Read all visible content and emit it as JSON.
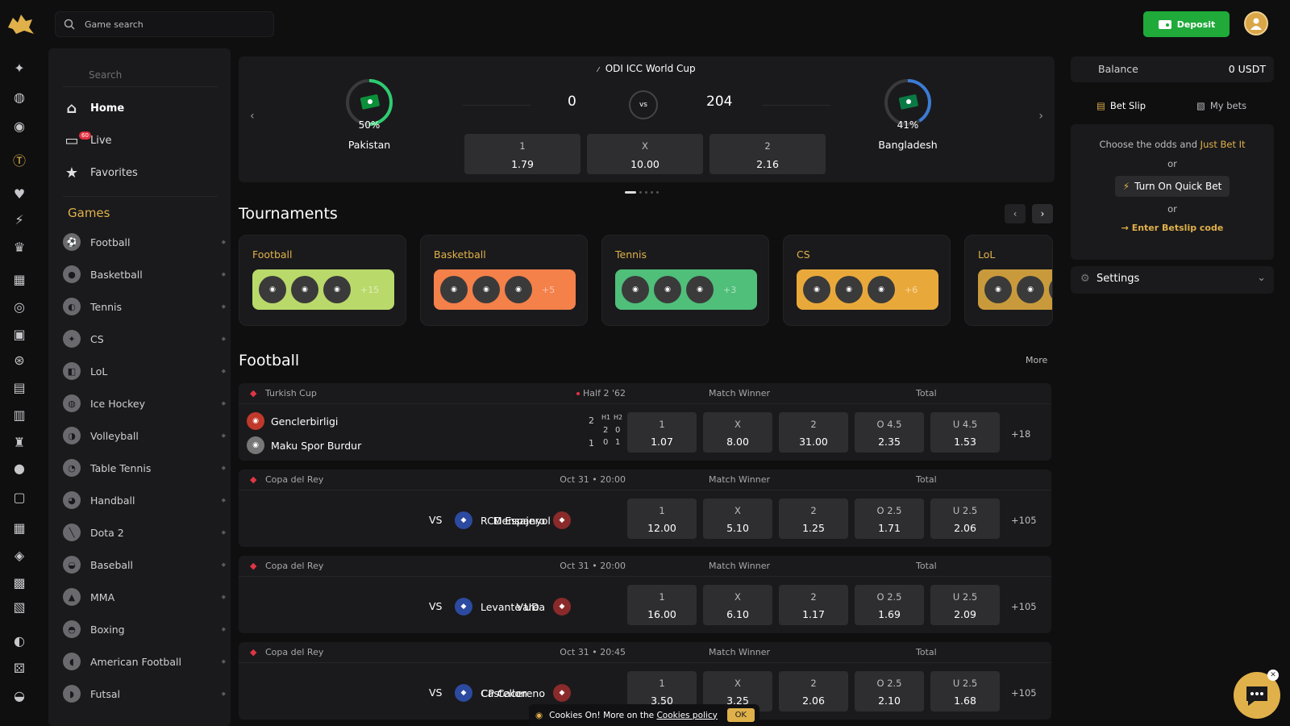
{
  "header": {
    "search_placeholder": "Game search",
    "deposit_label": "Deposit"
  },
  "sidebar": {
    "search_placeholder": "Search",
    "nav": [
      {
        "label": "Home"
      },
      {
        "label": "Live",
        "badge": "60"
      },
      {
        "label": "Favorites"
      }
    ],
    "games_heading": "Games",
    "sports": [
      "Football",
      "Basketball",
      "Tennis",
      "CS",
      "LoL",
      "Ice Hockey",
      "Volleyball",
      "Table Tennis",
      "Handball",
      "Dota 2",
      "Baseball",
      "MMA",
      "Boxing",
      "American Football",
      "Futsal"
    ]
  },
  "hero": {
    "event": "ODI ICC World Cup",
    "team1": {
      "name": "Pakistan",
      "pct": "50%",
      "pct_value": 50
    },
    "team2": {
      "name": "Bangladesh",
      "pct": "41%",
      "pct_value": 41
    },
    "score1": "0",
    "score2": "204",
    "vs": "vs",
    "odds": [
      {
        "k": "1",
        "v": "1.79"
      },
      {
        "k": "X",
        "v": "10.00"
      },
      {
        "k": "2",
        "v": "2.16"
      }
    ]
  },
  "tournaments": {
    "title": "Tournaments",
    "cards": [
      {
        "name": "Football",
        "more": "+15",
        "color": "#b9d96a"
      },
      {
        "name": "Basketball",
        "more": "+5",
        "color": "#f4804a"
      },
      {
        "name": "Tennis",
        "more": "+3",
        "color": "#4fbf7a"
      },
      {
        "name": "CS",
        "more": "+6",
        "color": "#e9a93a"
      },
      {
        "name": "LoL",
        "more": "",
        "color": "#c99a3c"
      }
    ]
  },
  "football": {
    "title": "Football",
    "more": "More",
    "col_match_winner": "Match Winner",
    "col_total": "Total",
    "matches": [
      {
        "competition": "Turkish Cup",
        "time": "Half 2 '62",
        "live": true,
        "home": "Genclerbirligi",
        "away": "Maku Spor Burdur",
        "home_score": "2",
        "away_score": "1",
        "h1": "H1",
        "h2": "H2",
        "home_h1": "2",
        "home_h2": "0",
        "away_h1": "0",
        "away_h2": "1",
        "odds": [
          {
            "k": "1",
            "v": "1.07"
          },
          {
            "k": "X",
            "v": "8.00"
          },
          {
            "k": "2",
            "v": "31.00"
          },
          {
            "k": "O 4.5",
            "v": "2.35"
          },
          {
            "k": "U 4.5",
            "v": "1.53"
          }
        ],
        "more": "+18"
      },
      {
        "competition": "Copa del Rey",
        "time": "Oct 31 • 20:00",
        "home": "Mensajero",
        "away": "RCD Espanyol",
        "vs": "VS",
        "odds": [
          {
            "k": "1",
            "v": "12.00"
          },
          {
            "k": "X",
            "v": "5.10"
          },
          {
            "k": "2",
            "v": "1.25"
          },
          {
            "k": "O 2.5",
            "v": "1.71"
          },
          {
            "k": "U 2.5",
            "v": "2.06"
          }
        ],
        "more": "+105"
      },
      {
        "competition": "Copa del Rey",
        "time": "Oct 31 • 20:00",
        "home": "Varea",
        "away": "Levante UD",
        "vs": "VS",
        "odds": [
          {
            "k": "1",
            "v": "16.00"
          },
          {
            "k": "X",
            "v": "6.10"
          },
          {
            "k": "2",
            "v": "1.17"
          },
          {
            "k": "O 2.5",
            "v": "1.69"
          },
          {
            "k": "U 2.5",
            "v": "2.09"
          }
        ],
        "more": "+105"
      },
      {
        "competition": "Copa del Rey",
        "time": "Oct 31 • 20:45",
        "home": "CP Cacereno",
        "away": "Castellon",
        "vs": "VS",
        "odds": [
          {
            "k": "1",
            "v": "3.50"
          },
          {
            "k": "X",
            "v": "3.25"
          },
          {
            "k": "2",
            "v": "2.06"
          },
          {
            "k": "O 2.5",
            "v": "2.10"
          },
          {
            "k": "U 2.5",
            "v": "1.68"
          }
        ],
        "more": "+105"
      }
    ]
  },
  "right": {
    "balance_label": "Balance",
    "balance_value": "0 USDT",
    "tab_slip": "Bet Slip",
    "tab_bets": "My bets",
    "choose_text": "Choose the odds and",
    "just_bet": "Just Bet It",
    "or": "or",
    "quick_bet": "Turn On Quick Bet",
    "betslip_code": "→ Enter Betslip code",
    "settings": "Settings"
  },
  "cookie": {
    "text": "Cookies On! More on the",
    "link": "Cookies policy",
    "ok": "OK"
  },
  "colors": {
    "accent": "#e0b14a",
    "deposit": "#1faa3a",
    "live": "#e03545",
    "ring_green": "#2ecc71",
    "ring_blue": "#3a7bd5"
  }
}
